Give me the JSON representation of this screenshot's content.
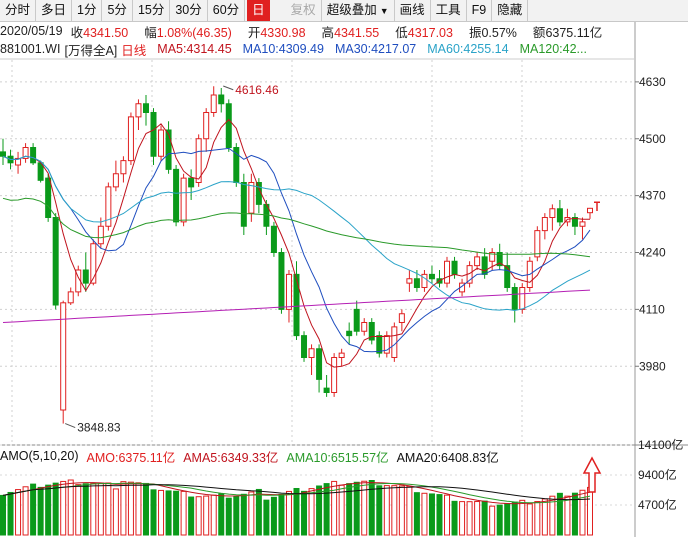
{
  "toolbar": {
    "items": [
      "分时",
      "多日",
      "1分",
      "5分",
      "15分",
      "30分",
      "60分",
      "日",
      "复权",
      "超级叠加",
      "画线",
      "工具",
      "F9",
      "隐藏"
    ],
    "active_index": 7,
    "disabled_index": 8
  },
  "info": {
    "date": "2020/05/19",
    "close_label": "收",
    "close": "4341.50",
    "change_label": "幅",
    "change": "1.08%(46.35)",
    "open_label": "开",
    "open": "4330.98",
    "high_label": "高",
    "high": "4341.55",
    "low_label": "低",
    "low": "4317.03",
    "amp_label": "振",
    "amp": "0.57%",
    "amount_label": "额",
    "amount": "6375.11亿"
  },
  "ma_line": {
    "code": "881001.WI",
    "name": "[万得全A]",
    "period": "日线",
    "ma5": "MA5:4314.45",
    "ma10": "MA10:4309.49",
    "ma30": "MA30:4217.07",
    "ma60": "MA60:4255.14",
    "ma120": "MA120:42..."
  },
  "price_axis": [
    "4630",
    "4500",
    "4370",
    "4240",
    "4110",
    "3980"
  ],
  "annotations": {
    "high": "4616.46",
    "low": "3848.83"
  },
  "volume_line": {
    "amo": "AMO(5,10,20)",
    "amo_val": "AMO:6375.11亿",
    "ama5": "AMA5:6349.33亿",
    "ama10": "AMA10:6515.57亿",
    "ama20": "AMA20:6408.83亿"
  },
  "volume_axis": [
    "14100亿",
    "9400亿",
    "4700亿"
  ],
  "colors": {
    "up": "#e02020",
    "down": "#0a9a1a",
    "ma5": "#c0141e",
    "ma10": "#1f4ebf",
    "ma30": "#2aa3c8",
    "ma60": "#2a9a2a",
    "ma120": "#b41fb4"
  },
  "chart_data": {
    "type": "candlestick",
    "y_range": [
      3800,
      4680
    ],
    "candles": [
      [
        4470,
        4500,
        4440,
        4460
      ],
      [
        4460,
        4475,
        4430,
        4445
      ],
      [
        4440,
        4470,
        4420,
        4455
      ],
      [
        4455,
        4490,
        4445,
        4480
      ],
      [
        4480,
        4490,
        4440,
        4445
      ],
      [
        4445,
        4450,
        4400,
        4405
      ],
      [
        4410,
        4420,
        4310,
        4320
      ],
      [
        4320,
        4330,
        4110,
        4120
      ],
      [
        3880,
        4130,
        3849,
        4125
      ],
      [
        4125,
        4160,
        4120,
        4150
      ],
      [
        4150,
        4210,
        4140,
        4200
      ],
      [
        4200,
        4240,
        4150,
        4170
      ],
      [
        4170,
        4270,
        4165,
        4260
      ],
      [
        4260,
        4320,
        4250,
        4300
      ],
      [
        4300,
        4400,
        4290,
        4390
      ],
      [
        4390,
        4450,
        4380,
        4420
      ],
      [
        4420,
        4460,
        4400,
        4450
      ],
      [
        4450,
        4560,
        4440,
        4550
      ],
      [
        4550,
        4590,
        4520,
        4580
      ],
      [
        4580,
        4600,
        4530,
        4560
      ],
      [
        4560,
        4570,
        4440,
        4460
      ],
      [
        4460,
        4530,
        4450,
        4520
      ],
      [
        4520,
        4540,
        4420,
        4430
      ],
      [
        4430,
        4440,
        4300,
        4310
      ],
      [
        4310,
        4420,
        4300,
        4410
      ],
      [
        4410,
        4430,
        4360,
        4390
      ],
      [
        4400,
        4510,
        4390,
        4500
      ],
      [
        4500,
        4570,
        4470,
        4560
      ],
      [
        4560,
        4620,
        4550,
        4600
      ],
      [
        4600,
        4616,
        4560,
        4580
      ],
      [
        4580,
        4590,
        4470,
        4480
      ],
      [
        4480,
        4490,
        4390,
        4400
      ],
      [
        4400,
        4420,
        4280,
        4300
      ],
      [
        4330,
        4420,
        4310,
        4400
      ],
      [
        4400,
        4410,
        4330,
        4350
      ],
      [
        4350,
        4360,
        4280,
        4300
      ],
      [
        4300,
        4310,
        4230,
        4240
      ],
      [
        4240,
        4250,
        4100,
        4110
      ],
      [
        4110,
        4200,
        4080,
        4190
      ],
      [
        4190,
        4220,
        4040,
        4050
      ],
      [
        4050,
        4060,
        3990,
        4000
      ],
      [
        4000,
        4030,
        3960,
        4020
      ],
      [
        4020,
        4030,
        3920,
        3950
      ],
      [
        3930,
        3960,
        3910,
        3920
      ],
      [
        3920,
        4010,
        3910,
        4000
      ],
      [
        4000,
        4020,
        3980,
        4010
      ],
      [
        4060,
        4080,
        4030,
        4050
      ],
      [
        4110,
        4130,
        4050,
        4060
      ],
      [
        4060,
        4090,
        4050,
        4080
      ],
      [
        4080,
        4090,
        4030,
        4040
      ],
      [
        4050,
        4060,
        4000,
        4010
      ],
      [
        4010,
        4060,
        4000,
        4050
      ],
      [
        4000,
        4080,
        3990,
        4070
      ],
      [
        4080,
        4110,
        4060,
        4100
      ],
      [
        4170,
        4200,
        4150,
        4180
      ],
      [
        4180,
        4200,
        4150,
        4160
      ],
      [
        4160,
        4200,
        4150,
        4190
      ],
      [
        4190,
        4210,
        4170,
        4180
      ],
      [
        4180,
        4200,
        4160,
        4170
      ],
      [
        4170,
        4230,
        4160,
        4220
      ],
      [
        4220,
        4230,
        4180,
        4190
      ],
      [
        4150,
        4180,
        4140,
        4170
      ],
      [
        4170,
        4220,
        4160,
        4210
      ],
      [
        4210,
        4240,
        4200,
        4230
      ],
      [
        4230,
        4250,
        4180,
        4190
      ],
      [
        4220,
        4250,
        4200,
        4240
      ],
      [
        4240,
        4260,
        4200,
        4210
      ],
      [
        4210,
        4240,
        4150,
        4160
      ],
      [
        4160,
        4170,
        4080,
        4110
      ],
      [
        4110,
        4170,
        4100,
        4160
      ],
      [
        4160,
        4230,
        4150,
        4220
      ],
      [
        4230,
        4300,
        4220,
        4290
      ],
      [
        4290,
        4330,
        4270,
        4320
      ],
      [
        4320,
        4350,
        4290,
        4340
      ],
      [
        4340,
        4360,
        4300,
        4310
      ],
      [
        4310,
        4340,
        4300,
        4320
      ],
      [
        4320,
        4330,
        4280,
        4300
      ],
      [
        4300,
        4320,
        4270,
        4310
      ],
      [
        4331,
        4342,
        4317,
        4341
      ]
    ]
  }
}
